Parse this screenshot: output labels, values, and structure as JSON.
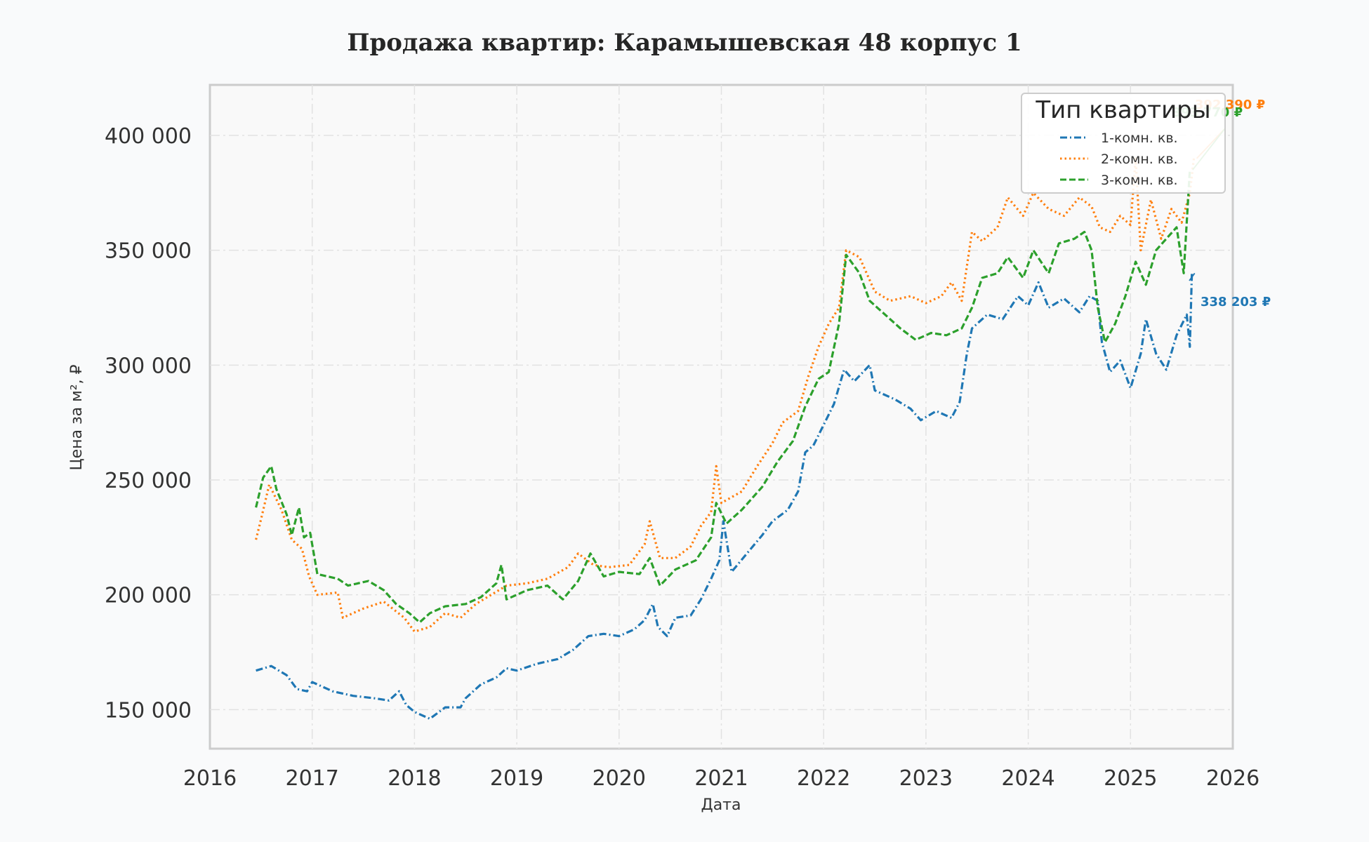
{
  "chart_data": {
    "type": "line",
    "title": "Продажа квартир: Карамышевская 48 корпус 1",
    "xlabel": "Дата",
    "ylabel": "Цена за м², ₽",
    "xlim": [
      2016.0,
      2026.0
    ],
    "ylim": [
      133000,
      422000
    ],
    "x_ticks": [
      2016,
      2017,
      2018,
      2019,
      2020,
      2021,
      2022,
      2023,
      2024,
      2025,
      2026
    ],
    "x_tick_labels": [
      "2016",
      "2017",
      "2018",
      "2019",
      "2020",
      "2021",
      "2022",
      "2023",
      "2024",
      "2025",
      "2026"
    ],
    "y_ticks": [
      150000,
      200000,
      250000,
      300000,
      350000,
      400000
    ],
    "y_tick_labels": [
      "150 000",
      "200 000",
      "250 000",
      "300 000",
      "350 000",
      "400 000"
    ],
    "grid": true,
    "legend": {
      "title": "Тип квартиры",
      "placement": "top-right",
      "entries": [
        "1-комн. кв.",
        "2-комн. кв.",
        "3-комн. кв."
      ]
    },
    "series": [
      {
        "name": "1-комн. кв.",
        "color": "#1f77b4",
        "style": "dash-dot",
        "points": [
          [
            2016.45,
            167000
          ],
          [
            2016.6,
            169000
          ],
          [
            2016.75,
            165000
          ],
          [
            2016.85,
            159000
          ],
          [
            2016.95,
            158000
          ],
          [
            2017.0,
            162000
          ],
          [
            2017.2,
            158000
          ],
          [
            2017.4,
            156000
          ],
          [
            2017.6,
            155000
          ],
          [
            2017.75,
            154000
          ],
          [
            2017.85,
            158000
          ],
          [
            2017.92,
            152000
          ],
          [
            2018.0,
            149000
          ],
          [
            2018.15,
            146000
          ],
          [
            2018.3,
            151000
          ],
          [
            2018.45,
            151000
          ],
          [
            2018.5,
            155000
          ],
          [
            2018.65,
            161000
          ],
          [
            2018.8,
            164000
          ],
          [
            2018.9,
            168000
          ],
          [
            2019.0,
            167000
          ],
          [
            2019.2,
            170000
          ],
          [
            2019.4,
            172000
          ],
          [
            2019.55,
            176000
          ],
          [
            2019.7,
            182000
          ],
          [
            2019.85,
            183000
          ],
          [
            2020.0,
            182000
          ],
          [
            2020.15,
            185000
          ],
          [
            2020.25,
            189000
          ],
          [
            2020.33,
            196000
          ],
          [
            2020.38,
            186000
          ],
          [
            2020.47,
            182000
          ],
          [
            2020.55,
            190000
          ],
          [
            2020.7,
            191000
          ],
          [
            2020.8,
            198000
          ],
          [
            2020.9,
            207000
          ],
          [
            2020.98,
            215000
          ],
          [
            2021.02,
            232000
          ],
          [
            2021.1,
            210000
          ],
          [
            2021.25,
            218000
          ],
          [
            2021.4,
            226000
          ],
          [
            2021.5,
            232000
          ],
          [
            2021.65,
            237000
          ],
          [
            2021.75,
            245000
          ],
          [
            2021.82,
            262000
          ],
          [
            2021.9,
            265000
          ],
          [
            2022.0,
            274000
          ],
          [
            2022.1,
            283000
          ],
          [
            2022.2,
            298000
          ],
          [
            2022.3,
            293000
          ],
          [
            2022.45,
            300000
          ],
          [
            2022.5,
            289000
          ],
          [
            2022.7,
            285000
          ],
          [
            2022.85,
            281000
          ],
          [
            2022.95,
            276000
          ],
          [
            2023.1,
            280000
          ],
          [
            2023.25,
            277000
          ],
          [
            2023.33,
            284000
          ],
          [
            2023.4,
            305000
          ],
          [
            2023.45,
            316000
          ],
          [
            2023.6,
            322000
          ],
          [
            2023.75,
            320000
          ],
          [
            2023.9,
            330000
          ],
          [
            2024.0,
            326000
          ],
          [
            2024.1,
            336000
          ],
          [
            2024.2,
            325000
          ],
          [
            2024.35,
            329000
          ],
          [
            2024.5,
            323000
          ],
          [
            2024.6,
            330000
          ],
          [
            2024.68,
            328000
          ],
          [
            2024.72,
            310000
          ],
          [
            2024.8,
            297000
          ],
          [
            2024.9,
            302000
          ],
          [
            2025.0,
            290000
          ],
          [
            2025.1,
            305000
          ],
          [
            2025.15,
            320000
          ],
          [
            2025.25,
            305000
          ],
          [
            2025.35,
            298000
          ],
          [
            2025.45,
            313000
          ],
          [
            2025.55,
            322000
          ],
          [
            2025.58,
            308000
          ],
          [
            2025.6,
            340000
          ]
        ],
        "end_label": "338 203 ₽"
      },
      {
        "name": "2-комн. кв.",
        "color": "#ff7f0e",
        "style": "dotted",
        "points": [
          [
            2016.45,
            224000
          ],
          [
            2016.5,
            233000
          ],
          [
            2016.58,
            248000
          ],
          [
            2016.7,
            237000
          ],
          [
            2016.8,
            224000
          ],
          [
            2016.9,
            220000
          ],
          [
            2016.97,
            208000
          ],
          [
            2017.05,
            200000
          ],
          [
            2017.25,
            201000
          ],
          [
            2017.3,
            190000
          ],
          [
            2017.5,
            194000
          ],
          [
            2017.7,
            197000
          ],
          [
            2017.9,
            190000
          ],
          [
            2018.0,
            184000
          ],
          [
            2018.15,
            186000
          ],
          [
            2018.3,
            192000
          ],
          [
            2018.45,
            190000
          ],
          [
            2018.6,
            196000
          ],
          [
            2018.75,
            200000
          ],
          [
            2018.9,
            204000
          ],
          [
            2019.1,
            205000
          ],
          [
            2019.3,
            207000
          ],
          [
            2019.5,
            212000
          ],
          [
            2019.6,
            218000
          ],
          [
            2019.75,
            213000
          ],
          [
            2019.9,
            212000
          ],
          [
            2020.1,
            213000
          ],
          [
            2020.25,
            222000
          ],
          [
            2020.3,
            232000
          ],
          [
            2020.4,
            216000
          ],
          [
            2020.55,
            216000
          ],
          [
            2020.7,
            221000
          ],
          [
            2020.8,
            230000
          ],
          [
            2020.9,
            236000
          ],
          [
            2020.95,
            256000
          ],
          [
            2021.0,
            240000
          ],
          [
            2021.2,
            245000
          ],
          [
            2021.35,
            256000
          ],
          [
            2021.5,
            266000
          ],
          [
            2021.6,
            275000
          ],
          [
            2021.75,
            280000
          ],
          [
            2021.85,
            295000
          ],
          [
            2021.95,
            308000
          ],
          [
            2022.05,
            318000
          ],
          [
            2022.15,
            325000
          ],
          [
            2022.22,
            350000
          ],
          [
            2022.35,
            347000
          ],
          [
            2022.5,
            332000
          ],
          [
            2022.65,
            328000
          ],
          [
            2022.85,
            330000
          ],
          [
            2023.0,
            327000
          ],
          [
            2023.15,
            330000
          ],
          [
            2023.25,
            336000
          ],
          [
            2023.35,
            328000
          ],
          [
            2023.45,
            358000
          ],
          [
            2023.55,
            354000
          ],
          [
            2023.7,
            360000
          ],
          [
            2023.8,
            373000
          ],
          [
            2023.95,
            365000
          ],
          [
            2024.05,
            375000
          ],
          [
            2024.2,
            368000
          ],
          [
            2024.35,
            365000
          ],
          [
            2024.5,
            373000
          ],
          [
            2024.62,
            369000
          ],
          [
            2024.7,
            360000
          ],
          [
            2024.8,
            358000
          ],
          [
            2024.9,
            365000
          ],
          [
            2025.0,
            361000
          ],
          [
            2025.05,
            390000
          ],
          [
            2025.1,
            350000
          ],
          [
            2025.2,
            372000
          ],
          [
            2025.3,
            355000
          ],
          [
            2025.4,
            368000
          ],
          [
            2025.5,
            362000
          ],
          [
            2025.58,
            375000
          ],
          [
            2025.62,
            390000
          ]
        ],
        "end_label": "392 390 ₽"
      },
      {
        "name": "3-комн. кв.",
        "color": "#2ca02c",
        "style": "dashed",
        "points": [
          [
            2016.45,
            238000
          ],
          [
            2016.52,
            251000
          ],
          [
            2016.6,
            256000
          ],
          [
            2016.65,
            246000
          ],
          [
            2016.75,
            235000
          ],
          [
            2016.8,
            226000
          ],
          [
            2016.87,
            238000
          ],
          [
            2016.92,
            225000
          ],
          [
            2016.98,
            227000
          ],
          [
            2017.05,
            209000
          ],
          [
            2017.25,
            207000
          ],
          [
            2017.35,
            204000
          ],
          [
            2017.55,
            206000
          ],
          [
            2017.7,
            202000
          ],
          [
            2017.82,
            196000
          ],
          [
            2017.95,
            192000
          ],
          [
            2018.05,
            188000
          ],
          [
            2018.15,
            192000
          ],
          [
            2018.3,
            195000
          ],
          [
            2018.5,
            196000
          ],
          [
            2018.65,
            199000
          ],
          [
            2018.8,
            205000
          ],
          [
            2018.85,
            213000
          ],
          [
            2018.9,
            198000
          ],
          [
            2019.1,
            202000
          ],
          [
            2019.3,
            204000
          ],
          [
            2019.45,
            198000
          ],
          [
            2019.6,
            206000
          ],
          [
            2019.72,
            218000
          ],
          [
            2019.85,
            208000
          ],
          [
            2020.0,
            210000
          ],
          [
            2020.2,
            209000
          ],
          [
            2020.3,
            216000
          ],
          [
            2020.4,
            204000
          ],
          [
            2020.55,
            211000
          ],
          [
            2020.75,
            215000
          ],
          [
            2020.9,
            225000
          ],
          [
            2020.95,
            240000
          ],
          [
            2021.05,
            231000
          ],
          [
            2021.2,
            237000
          ],
          [
            2021.4,
            247000
          ],
          [
            2021.55,
            258000
          ],
          [
            2021.7,
            267000
          ],
          [
            2021.82,
            282000
          ],
          [
            2021.95,
            294000
          ],
          [
            2022.05,
            297000
          ],
          [
            2022.15,
            318000
          ],
          [
            2022.22,
            348000
          ],
          [
            2022.35,
            340000
          ],
          [
            2022.45,
            328000
          ],
          [
            2022.6,
            322000
          ],
          [
            2022.75,
            316000
          ],
          [
            2022.9,
            311000
          ],
          [
            2023.05,
            314000
          ],
          [
            2023.2,
            313000
          ],
          [
            2023.35,
            316000
          ],
          [
            2023.45,
            325000
          ],
          [
            2023.55,
            338000
          ],
          [
            2023.7,
            340000
          ],
          [
            2023.8,
            347000
          ],
          [
            2023.95,
            338000
          ],
          [
            2024.05,
            350000
          ],
          [
            2024.2,
            340000
          ],
          [
            2024.3,
            353000
          ],
          [
            2024.45,
            355000
          ],
          [
            2024.55,
            358000
          ],
          [
            2024.62,
            350000
          ],
          [
            2024.68,
            325000
          ],
          [
            2024.75,
            310000
          ],
          [
            2024.85,
            318000
          ],
          [
            2024.95,
            330000
          ],
          [
            2025.05,
            345000
          ],
          [
            2025.15,
            335000
          ],
          [
            2025.25,
            350000
          ],
          [
            2025.35,
            355000
          ],
          [
            2025.45,
            360000
          ],
          [
            2025.52,
            340000
          ],
          [
            2025.58,
            385000
          ]
        ],
        "end_label": "393 770 ₽"
      }
    ]
  }
}
